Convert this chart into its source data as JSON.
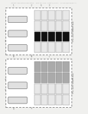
{
  "bg_color": "#f0f0ee",
  "header_text": "Patent Application Publication    May 26, 2011  Sheet 1/4 of 3    US 2011/0123933 A1",
  "header_color": "#aaaaaa",
  "header_fontsize": 1.6,
  "fig1_label": "FIG. 200 (Sheet 8/2)",
  "fig2_label": "FIG. 205 (Sheet 8/2)",
  "dashed_color": "#888888",
  "channel_edge": "#555555",
  "channel_face": "#e0e0e0",
  "grid_edge": "#888888",
  "grid_light": "#e8e8e8",
  "grid_dark": "#111111",
  "grid_gray": "#aaaaaa",
  "white": "#ffffff"
}
